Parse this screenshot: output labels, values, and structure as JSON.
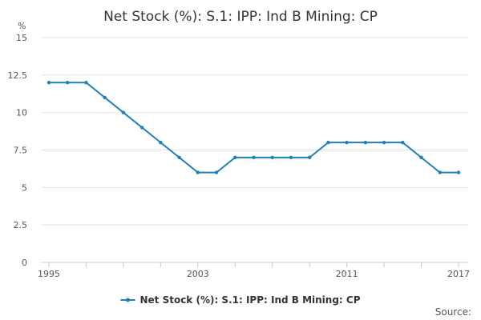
{
  "chart_data": {
    "type": "line",
    "title": "Net Stock (%): S.1: IPP: Ind B Mining: CP",
    "ylabel": "%",
    "xlabel": "",
    "x": [
      1995,
      1996,
      1997,
      1998,
      1999,
      2000,
      2001,
      2002,
      2003,
      2004,
      2005,
      2006,
      2007,
      2008,
      2009,
      2010,
      2011,
      2012,
      2013,
      2014,
      2015,
      2016,
      2017
    ],
    "x_tick_labels": [
      "1995",
      "2003",
      "2011",
      "2017"
    ],
    "x_tick_values": [
      1995,
      2003,
      2011,
      2017
    ],
    "xlim": [
      1995,
      2017
    ],
    "y_tick_labels": [
      "0",
      "2.5",
      "5",
      "7.5",
      "10",
      "12.5",
      "15"
    ],
    "y_tick_values": [
      0,
      2.5,
      5,
      7.5,
      10,
      12.5,
      15
    ],
    "ylim": [
      0,
      15
    ],
    "grid": true,
    "legend_position": "bottom",
    "series": [
      {
        "name": "Net Stock (%): S.1: IPP: Ind B Mining: CP",
        "color": "#1f7fba",
        "values": [
          12,
          12,
          12,
          11,
          10,
          9,
          8,
          7,
          6,
          6,
          7,
          7,
          7,
          7,
          7,
          8,
          8,
          8,
          8,
          8,
          7,
          6,
          6
        ]
      }
    ],
    "source_label": "Source:"
  }
}
